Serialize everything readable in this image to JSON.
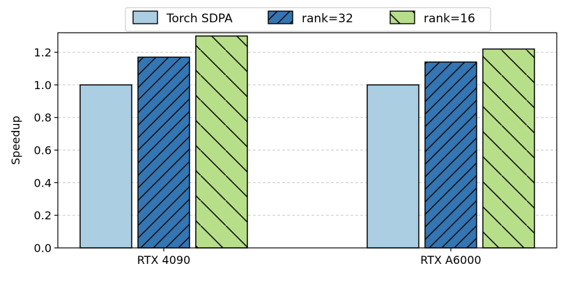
{
  "chart_data": {
    "type": "bar",
    "categories": [
      "RTX 4090",
      "RTX A6000"
    ],
    "series": [
      {
        "name": "Torch SDPA",
        "values": [
          1.0,
          1.0
        ],
        "color": "#abcee3",
        "hatch": "none"
      },
      {
        "name": "rank=32",
        "values": [
          1.17,
          1.14
        ],
        "color": "#3475b3",
        "hatch": "forward"
      },
      {
        "name": "rank=16",
        "values": [
          1.3,
          1.22
        ],
        "color": "#b7df89",
        "hatch": "back"
      }
    ],
    "ylabel": "Speedup",
    "xlabel": "",
    "ylim": [
      0,
      1.32
    ],
    "yticks": [
      0.0,
      0.2,
      0.4,
      0.6,
      0.8,
      1.0,
      1.2
    ],
    "ytick_labels": [
      "0.0",
      "0.2",
      "0.4",
      "0.6",
      "0.8",
      "1.0",
      "1.2"
    ],
    "grid": "horizontal dashed",
    "legend_position": "top-center"
  }
}
